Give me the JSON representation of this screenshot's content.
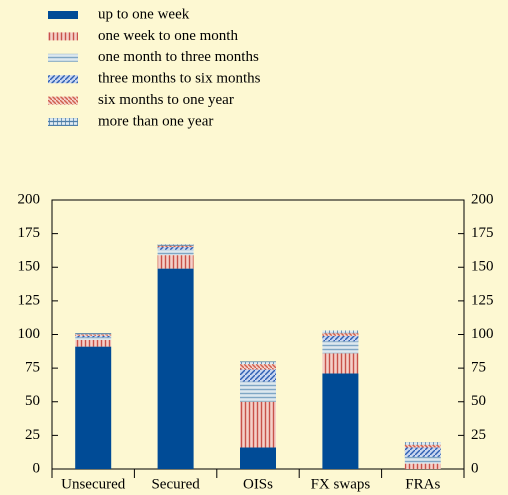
{
  "chart_data": {
    "type": "stacked-bar",
    "categories": [
      "Unsecured",
      "Secured",
      "OISs",
      "FX swaps",
      "FRAs"
    ],
    "series": [
      {
        "name": "up to one week",
        "color": "#004b96",
        "values": [
          91,
          149,
          16,
          71,
          0
        ]
      },
      {
        "name": "one week to one month",
        "color": "#c8524a",
        "values": [
          5,
          10,
          34,
          15,
          4
        ]
      },
      {
        "name": "one month to three months",
        "color": "#7fa6c4",
        "values": [
          2,
          4,
          15,
          9,
          5
        ]
      },
      {
        "name": "three months to six months",
        "color": "#2f5fb3",
        "values": [
          1,
          2,
          9,
          4,
          7
        ]
      },
      {
        "name": "six months to one year",
        "color": "#d0604e",
        "values": [
          1,
          1,
          4,
          2,
          2
        ]
      },
      {
        "name": "more than one year",
        "color": "#4f7fa8",
        "values": [
          1,
          1,
          2,
          2,
          2
        ]
      }
    ],
    "ylim": [
      0,
      200
    ],
    "yticks": [
      0,
      25,
      50,
      75,
      100,
      125,
      150,
      175,
      200
    ],
    "y2lim": [
      0,
      200
    ],
    "y2ticks": [
      0,
      25,
      50,
      75,
      100,
      125,
      150,
      175,
      200
    ]
  }
}
